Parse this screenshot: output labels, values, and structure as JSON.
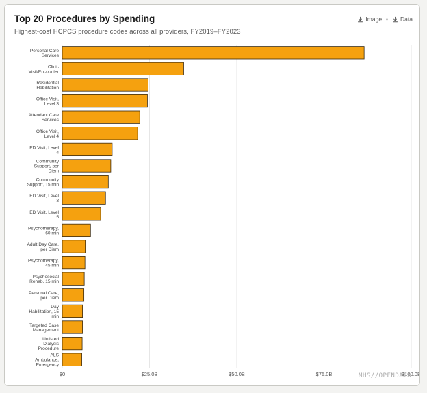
{
  "header": {
    "title": "Top 20 Procedures by Spending",
    "subtitle": "Highest-cost HCPCS procedure codes across all providers, FY2019–FY2023"
  },
  "actions": {
    "image_label": "Image",
    "separator": "•",
    "data_label": "Data"
  },
  "footer": {
    "brand": "MHS//OPENDATA"
  },
  "colors": {
    "bar_fill": "#f5a10f",
    "bar_stroke": "#3a2a10",
    "grid": "#e6e6e6"
  },
  "chart_data": {
    "type": "bar",
    "orientation": "horizontal",
    "categories": [
      [
        "Personal Care",
        "Services"
      ],
      [
        "Clinic",
        "Visit/Encounter"
      ],
      [
        "Residential",
        "Habilitation"
      ],
      [
        "Office Visit,",
        "Level 3"
      ],
      [
        "Attendant Care",
        "Services"
      ],
      [
        "Office Visit,",
        "Level 4"
      ],
      [
        "ED Visit, Level",
        "4"
      ],
      [
        "Community",
        "Support, per",
        "Diem"
      ],
      [
        "Community",
        "Support, 15 min"
      ],
      [
        "ED Visit, Level",
        "3"
      ],
      [
        "ED Visit, Level",
        "5"
      ],
      [
        "Psychotherapy,",
        "60 min"
      ],
      [
        "Adult Day Care,",
        "per Diem"
      ],
      [
        "Psychotherapy,",
        "45 min"
      ],
      [
        "Psychosocial",
        "Rehab, 15 min"
      ],
      [
        "Personal Care,",
        "per Diem"
      ],
      [
        "Day",
        "Habilitation, 15",
        "min"
      ],
      [
        "Targeted Case",
        "Management"
      ],
      [
        "Unlisted",
        "Dialysis",
        "Procedure"
      ],
      [
        "ALS",
        "Ambulance,",
        "Emergency"
      ]
    ],
    "values": [
      86.5,
      34.8,
      24.6,
      24.4,
      22.2,
      21.6,
      14.3,
      13.9,
      13.2,
      12.4,
      11.0,
      8.1,
      6.6,
      6.5,
      6.3,
      6.2,
      5.8,
      5.8,
      5.7,
      5.6
    ],
    "unit": "B",
    "xlim": [
      0,
      100
    ],
    "xticks": [
      "$0",
      "$25.0B",
      "$50.0B",
      "$75.0B",
      "$100.0B"
    ],
    "xtick_values": [
      0,
      25,
      50,
      75,
      100
    ],
    "grid": true
  }
}
